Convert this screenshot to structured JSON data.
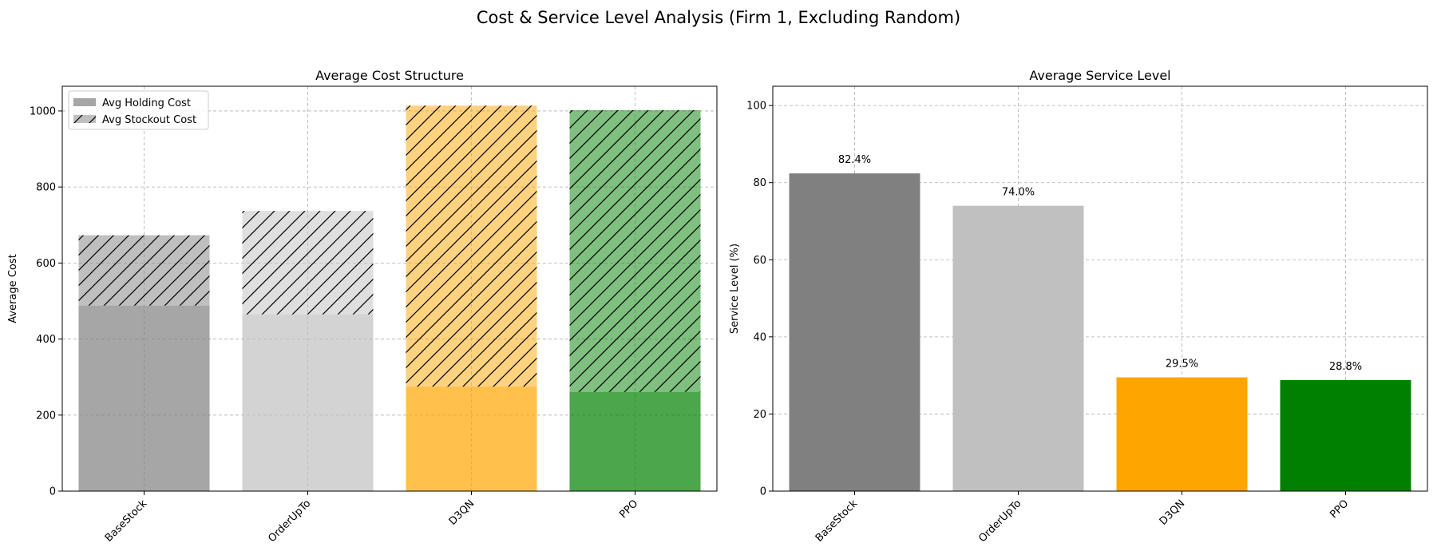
{
  "figure": {
    "title": "Cost & Service Level Analysis (Firm 1, Excluding Random)"
  },
  "chart_data": [
    {
      "type": "bar",
      "stacked": true,
      "title": "Average Cost Structure",
      "xlabel": "",
      "ylabel": "Average Cost",
      "categories": [
        "BaseStock",
        "OrderUpTo",
        "D3QN",
        "PPO"
      ],
      "ylim": [
        0,
        1065
      ],
      "yticks": [
        0,
        200,
        400,
        600,
        800,
        1000
      ],
      "grid": true,
      "legend_position": "top-left",
      "category_colors": [
        "#808080",
        "#c0c0c0",
        "#ffa500",
        "#008000"
      ],
      "series": [
        {
          "name": "Avg Holding Cost",
          "values": [
            488,
            465,
            275,
            261
          ],
          "alpha": 0.7,
          "hatch": "none"
        },
        {
          "name": "Avg Stockout Cost",
          "values": [
            185,
            272,
            739,
            741
          ],
          "alpha": 0.5,
          "hatch": "diagonal"
        }
      ]
    },
    {
      "type": "bar",
      "title": "Average Service Level",
      "xlabel": "",
      "ylabel": "Service Level (%)",
      "categories": [
        "BaseStock",
        "OrderUpTo",
        "D3QN",
        "PPO"
      ],
      "values": [
        82.4,
        74.0,
        29.5,
        28.8
      ],
      "data_labels": [
        "82.4%",
        "74.0%",
        "29.5%",
        "28.8%"
      ],
      "ylim": [
        0,
        105
      ],
      "yticks": [
        0,
        20,
        40,
        60,
        80,
        100
      ],
      "grid": true,
      "colors": [
        "#808080",
        "#c0c0c0",
        "#ffa500",
        "#008000"
      ]
    }
  ]
}
